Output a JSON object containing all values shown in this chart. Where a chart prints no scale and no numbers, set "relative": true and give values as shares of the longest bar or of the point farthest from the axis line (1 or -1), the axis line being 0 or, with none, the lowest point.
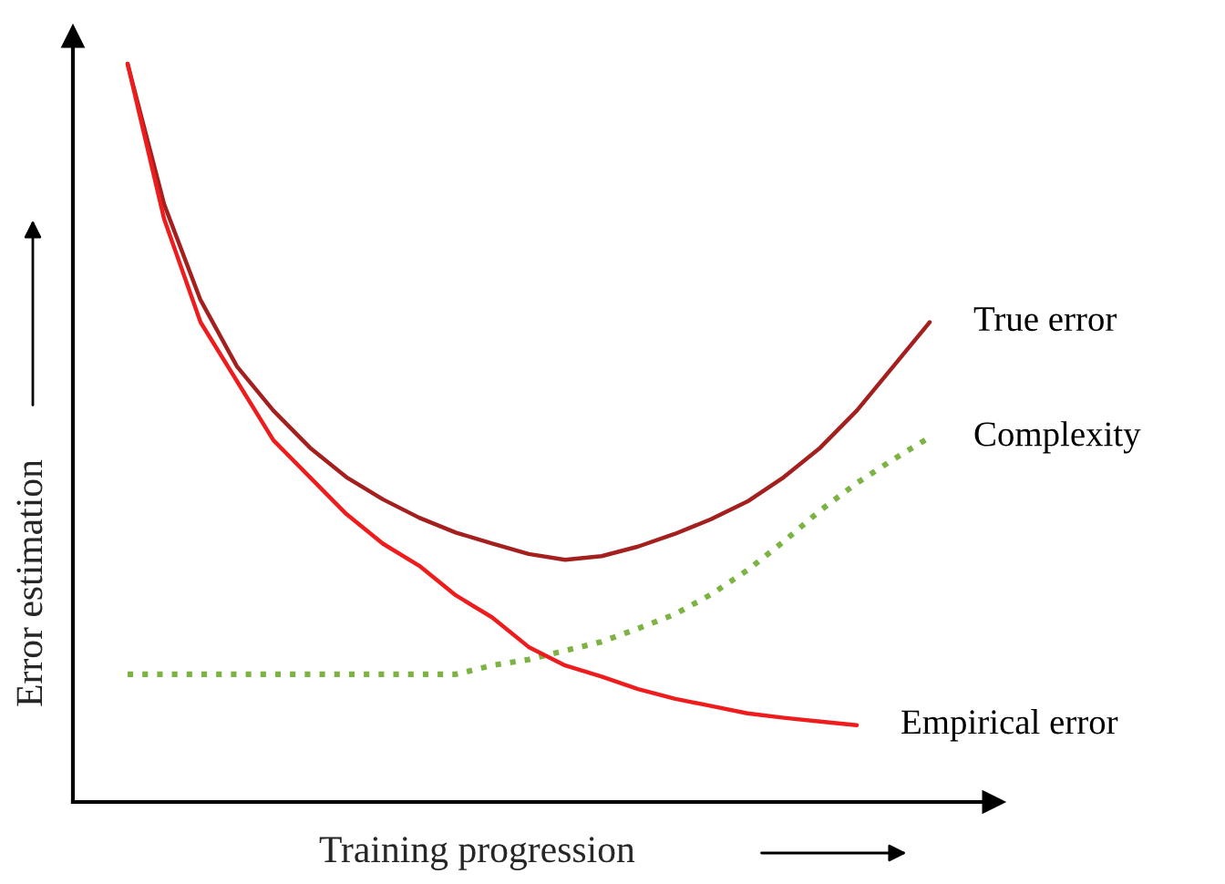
{
  "chart_data": {
    "type": "line",
    "relative": true,
    "xlabel": "Training progression",
    "ylabel": "Error estimation",
    "legend": false,
    "marker": "none",
    "categories": [
      null,
      null,
      null,
      null,
      null,
      null,
      null,
      null,
      null,
      null,
      null,
      null,
      null,
      null,
      null,
      null,
      null,
      null,
      null,
      null,
      null,
      null,
      null
    ],
    "series": [
      {
        "name": "True error",
        "color": "#a3201f",
        "line_style": "solid",
        "values": [
          1.0,
          0.81,
          0.68,
          0.59,
          0.53,
          0.48,
          0.44,
          0.41,
          0.385,
          0.365,
          0.35,
          0.336,
          0.328,
          0.333,
          0.346,
          0.363,
          0.383,
          0.407,
          0.44,
          0.48,
          0.53,
          0.59,
          0.65
        ]
      },
      {
        "name": "Complexity",
        "color": "#7cb342",
        "line_style": "dotted",
        "values": [
          0.173,
          0.173,
          0.173,
          0.173,
          0.173,
          0.173,
          0.173,
          0.173,
          0.173,
          0.173,
          0.185,
          0.193,
          0.205,
          0.217,
          0.235,
          0.254,
          0.281,
          0.314,
          0.353,
          0.395,
          0.432,
          0.464,
          0.494
        ]
      },
      {
        "name": "Empirical error",
        "color": "#ee1c1c",
        "line_style": "solid",
        "values": [
          1.0,
          0.79,
          0.65,
          0.57,
          0.49,
          0.44,
          0.39,
          0.35,
          0.32,
          0.28,
          0.25,
          0.21,
          0.185,
          0.17,
          0.153,
          0.14,
          0.13,
          0.12,
          0.114,
          0.109,
          0.104,
          null,
          null
        ]
      }
    ]
  }
}
